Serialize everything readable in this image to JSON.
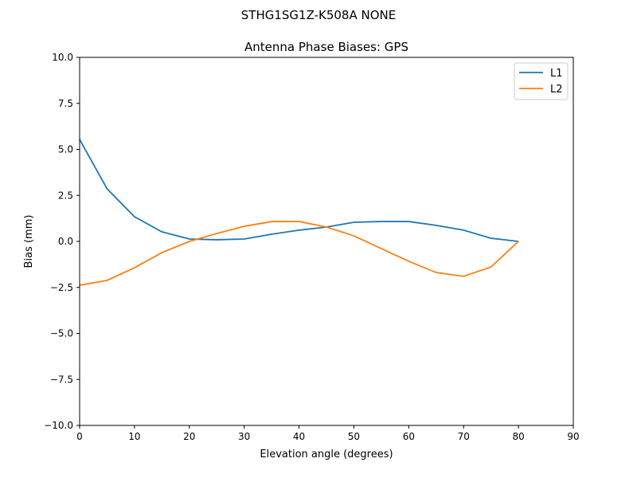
{
  "chart_data": {
    "type": "line",
    "suptitle": "STHG1SG1Z-K508A NONE",
    "title": "Antenna Phase Biases: GPS",
    "xlabel": "Elevation angle (degrees)",
    "ylabel": "Bias (mm)",
    "xlim": [
      0,
      90
    ],
    "ylim": [
      -10,
      10
    ],
    "xticks": [
      0,
      10,
      20,
      30,
      40,
      50,
      60,
      70,
      80,
      90
    ],
    "xtick_labels": [
      "0",
      "10",
      "20",
      "30",
      "40",
      "50",
      "60",
      "70",
      "80",
      "90"
    ],
    "yticks": [
      -10,
      -7.5,
      -5,
      -2.5,
      0,
      2.5,
      5,
      7.5,
      10
    ],
    "ytick_labels": [
      "−10.0",
      "−7.5",
      "−5.0",
      "−2.5",
      "0.0",
      "2.5",
      "5.0",
      "7.5",
      "10.0"
    ],
    "grid": false,
    "legend_placement": "top-right",
    "x": [
      0,
      5,
      10,
      15,
      20,
      25,
      30,
      35,
      40,
      45,
      50,
      55,
      60,
      65,
      70,
      75,
      80
    ],
    "series": [
      {
        "name": "L1",
        "color": "#1f77b4",
        "values": [
          5.54,
          2.86,
          1.34,
          0.52,
          0.13,
          0.09,
          0.13,
          0.39,
          0.61,
          0.78,
          1.04,
          1.08,
          1.08,
          0.87,
          0.61,
          0.17,
          0.0
        ]
      },
      {
        "name": "L2",
        "color": "#ff7f0e",
        "values": [
          -2.38,
          -2.12,
          -1.43,
          -0.61,
          0.0,
          0.43,
          0.82,
          1.08,
          1.08,
          0.78,
          0.3,
          -0.39,
          -1.08,
          -1.69,
          -1.9,
          -1.39,
          0.0
        ]
      }
    ]
  }
}
